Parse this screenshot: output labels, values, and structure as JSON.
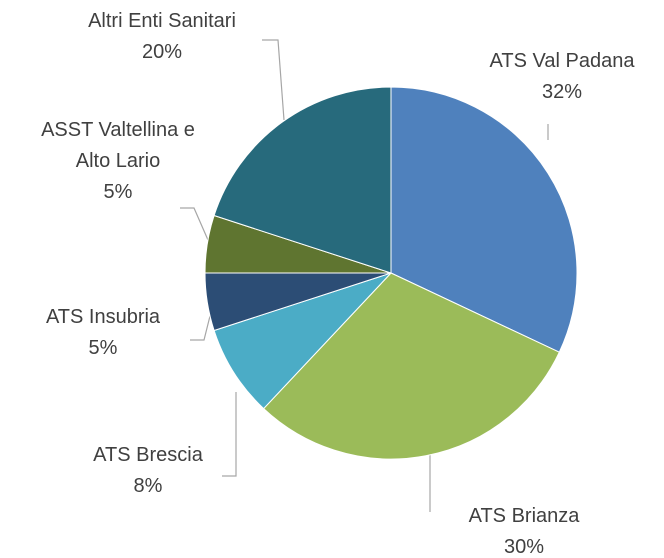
{
  "chart_data": {
    "type": "pie",
    "categories": [
      "ATS Val Padana",
      "ATS Brianza",
      "ATS Brescia",
      "ATS Insubria",
      "ASST Valtellina e Alto Lario",
      "Altri Enti Sanitari"
    ],
    "values": [
      32,
      30,
      8,
      5,
      5,
      20
    ],
    "value_labels": [
      "32%",
      "30%",
      "8%",
      "5%",
      "5%",
      "20%"
    ],
    "colors": [
      "#4f81bd",
      "#9bbb59",
      "#4bacc6",
      "#2c4d75",
      "#5f7530",
      "#276a7c"
    ]
  }
}
